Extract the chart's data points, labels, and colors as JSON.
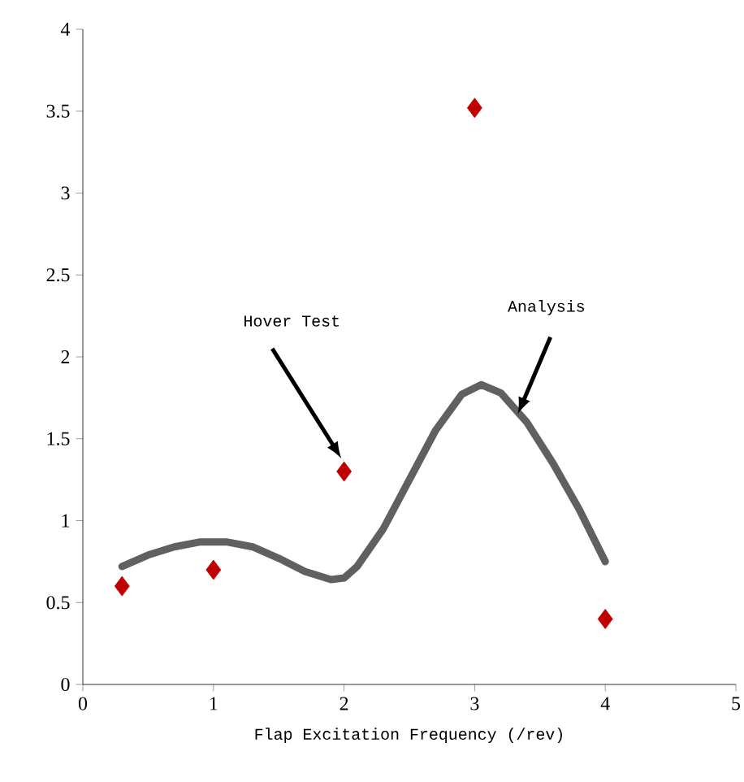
{
  "chart_data": {
    "type": "scatter",
    "xlabel": "Flap Excitation Frequency (/rev)",
    "xlim": [
      0,
      5
    ],
    "xticks": [
      0,
      1,
      2,
      3,
      4,
      5
    ],
    "ylim": [
      0,
      4
    ],
    "yticks": [
      0,
      0.5,
      1,
      1.5,
      2,
      2.5,
      3,
      3.5,
      4
    ],
    "grid": false,
    "series": [
      {
        "marker": "diamond",
        "color": "#c00000",
        "x": [
          0.3,
          1,
          2,
          3,
          4
        ],
        "values": [
          0.6,
          0.7,
          1.3,
          3.52,
          0.4
        ]
      },
      {
        "type": "line",
        "marker": "none",
        "line_style": "solid",
        "color": "#606060",
        "x": [
          0.3,
          0.5,
          0.7,
          0.9,
          1.1,
          1.3,
          1.5,
          1.7,
          1.9,
          2.0,
          2.1,
          2.3,
          2.5,
          2.7,
          2.9,
          3.05,
          3.2,
          3.4,
          3.6,
          3.8,
          4.0
        ],
        "values": [
          0.72,
          0.79,
          0.84,
          0.87,
          0.87,
          0.84,
          0.77,
          0.69,
          0.64,
          0.65,
          0.72,
          0.95,
          1.25,
          1.55,
          1.77,
          1.83,
          1.78,
          1.6,
          1.35,
          1.07,
          0.75
        ]
      }
    ],
    "annotations": [
      "Hover Test",
      "Analysis"
    ]
  }
}
